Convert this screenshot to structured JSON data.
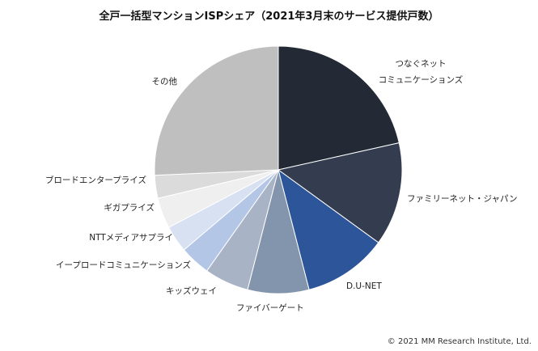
{
  "chart_data": {
    "type": "pie",
    "title": "全戸一括型マンションISPシェア（2021年3月末のサービス提供戸数）",
    "categories": [
      "つなぐネット\nコミュニケーションズ",
      "ファミリーネット・ジャパン",
      "D.U-NET",
      "ファイバーゲート",
      "キッズウェイ",
      "イープロードコミュニケーションズ",
      "NTTメディアサプライ",
      "ギガプライズ",
      "ブロードエンタープライズ",
      "その他"
    ],
    "values": [
      21.5,
      13.5,
      11,
      8,
      5.8,
      4,
      3.5,
      4,
      3,
      25.7
    ],
    "colors": [
      "#232a36",
      "#333d4f",
      "#2d5599",
      "#8394ad",
      "#a8b3c6",
      "#b4c6e6",
      "#d7e1f1",
      "#efefef",
      "#dbdbdb",
      "#bfbfbf"
    ],
    "start_angle": "top, clockwise",
    "legend": "none (labels beside slices)"
  },
  "copyright": "© 2021 MM Research Institute, Ltd."
}
